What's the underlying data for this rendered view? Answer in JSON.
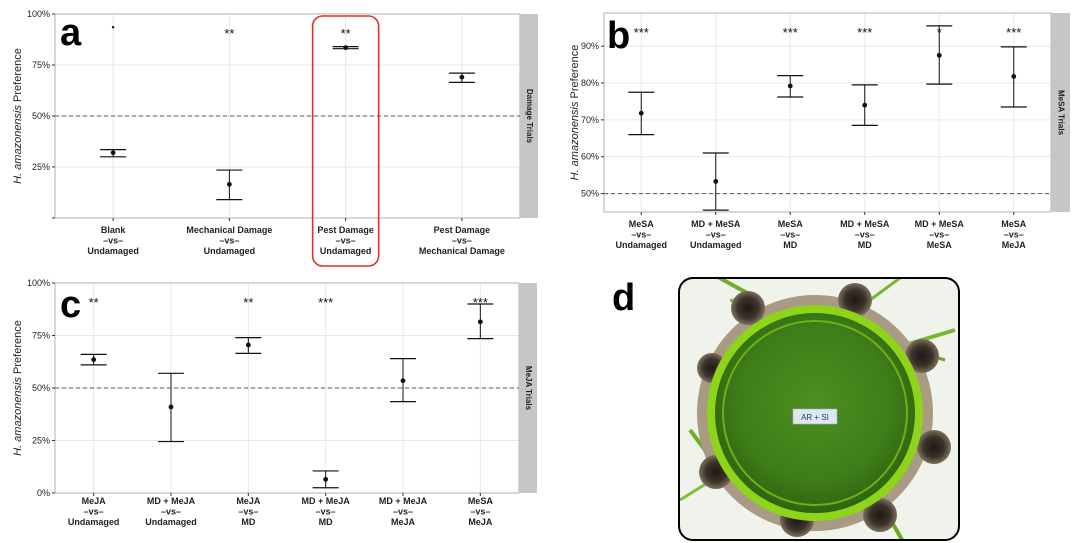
{
  "panel_letters": [
    "a",
    "b",
    "c",
    "d"
  ],
  "photo": {
    "label_text": "AR + SI"
  },
  "colors": {
    "highlight": "#e0302a",
    "strip": "#c6c6c6",
    "grid": "#e8e8e8",
    "ref_line": "#555555",
    "photo_green": "#8ed41a"
  },
  "chart_data": [
    {
      "id": "a",
      "type": "errorbar",
      "ylabel_species": "H. amazonensis",
      "ylabel_rest": " Preference",
      "strip_label": "Damage Trials",
      "ylim": [
        0,
        1
      ],
      "y_tick_values": [
        0,
        0.25,
        0.5,
        0.75,
        1
      ],
      "y_tick_labels": [
        "",
        "25%",
        "50%",
        "75%",
        "100%"
      ],
      "reference_line": 0.5,
      "highlight_category_index": 2,
      "categories": [
        [
          "Blank",
          "–vs–",
          "Undamaged"
        ],
        [
          "Mechanical Damage",
          "–vs–",
          "Undamaged"
        ],
        [
          "Pest Damage",
          "–vs–",
          "Undamaged"
        ],
        [
          "Pest Damage",
          "–vs–",
          "Mechanical Damage"
        ]
      ],
      "mean": [
        0.32,
        0.165,
        0.835,
        0.69
      ],
      "lower": [
        0.3,
        0.09,
        0.83,
        0.665
      ],
      "upper": [
        0.335,
        0.235,
        0.84,
        0.71
      ],
      "significance": [
        "",
        "**",
        "**",
        ""
      ],
      "outliers": [
        {
          "category_index": 0,
          "y": 0.935
        }
      ]
    },
    {
      "id": "b",
      "type": "errorbar",
      "ylabel_species": "H. amazonensis",
      "ylabel_rest": " Preference",
      "strip_label": "MeSA Trials",
      "ylim": [
        0.45,
        0.99
      ],
      "y_tick_values": [
        0.5,
        0.6,
        0.7,
        0.8,
        0.9
      ],
      "y_tick_labels": [
        "50%",
        "60%",
        "70%",
        "80%",
        "90%"
      ],
      "reference_line": 0.5,
      "categories": [
        [
          "MeSA",
          "–vs–",
          "Undamaged"
        ],
        [
          "MD + MeSA",
          "–vs–",
          "Undamaged"
        ],
        [
          "MeSA",
          "–vs–",
          "MD"
        ],
        [
          "MD + MeSA",
          "–vs–",
          "MD"
        ],
        [
          "MD + MeSA",
          "–vs–",
          "MeSA"
        ],
        [
          "MeSA",
          "–vs–",
          "MeJA"
        ]
      ],
      "mean": [
        0.718,
        0.533,
        0.792,
        0.74,
        0.875,
        0.818
      ],
      "lower": [
        0.66,
        0.455,
        0.762,
        0.685,
        0.797,
        0.735
      ],
      "upper": [
        0.775,
        0.61,
        0.82,
        0.795,
        0.955,
        0.898
      ],
      "significance": [
        "***",
        "",
        "***",
        "***",
        "*",
        "***"
      ]
    },
    {
      "id": "c",
      "type": "errorbar",
      "ylabel_species": "H. amazonensis",
      "ylabel_rest": " Preference",
      "strip_label": "MeJA Trials",
      "ylim": [
        0,
        1
      ],
      "y_tick_values": [
        0,
        0.25,
        0.5,
        0.75,
        1
      ],
      "y_tick_labels": [
        "0%",
        "25%",
        "50%",
        "75%",
        "100%"
      ],
      "reference_line": 0.5,
      "categories": [
        [
          "MeJA",
          "–vs–",
          "Undamaged"
        ],
        [
          "MD + MeJA",
          "–vs–",
          "Undamaged"
        ],
        [
          "MeJA",
          "–vs–",
          "MD"
        ],
        [
          "MD + MeJA",
          "–vs–",
          "MD"
        ],
        [
          "MD + MeJA",
          "–vs–",
          "MeJA"
        ],
        [
          "MeSA",
          "–vs–",
          "MeJA"
        ]
      ],
      "mean": [
        0.635,
        0.41,
        0.705,
        0.065,
        0.535,
        0.815
      ],
      "lower": [
        0.61,
        0.245,
        0.665,
        0.025,
        0.435,
        0.735
      ],
      "upper": [
        0.66,
        0.57,
        0.74,
        0.105,
        0.64,
        0.9
      ],
      "significance": [
        "**",
        "",
        "**",
        "***",
        "",
        "***"
      ]
    }
  ]
}
